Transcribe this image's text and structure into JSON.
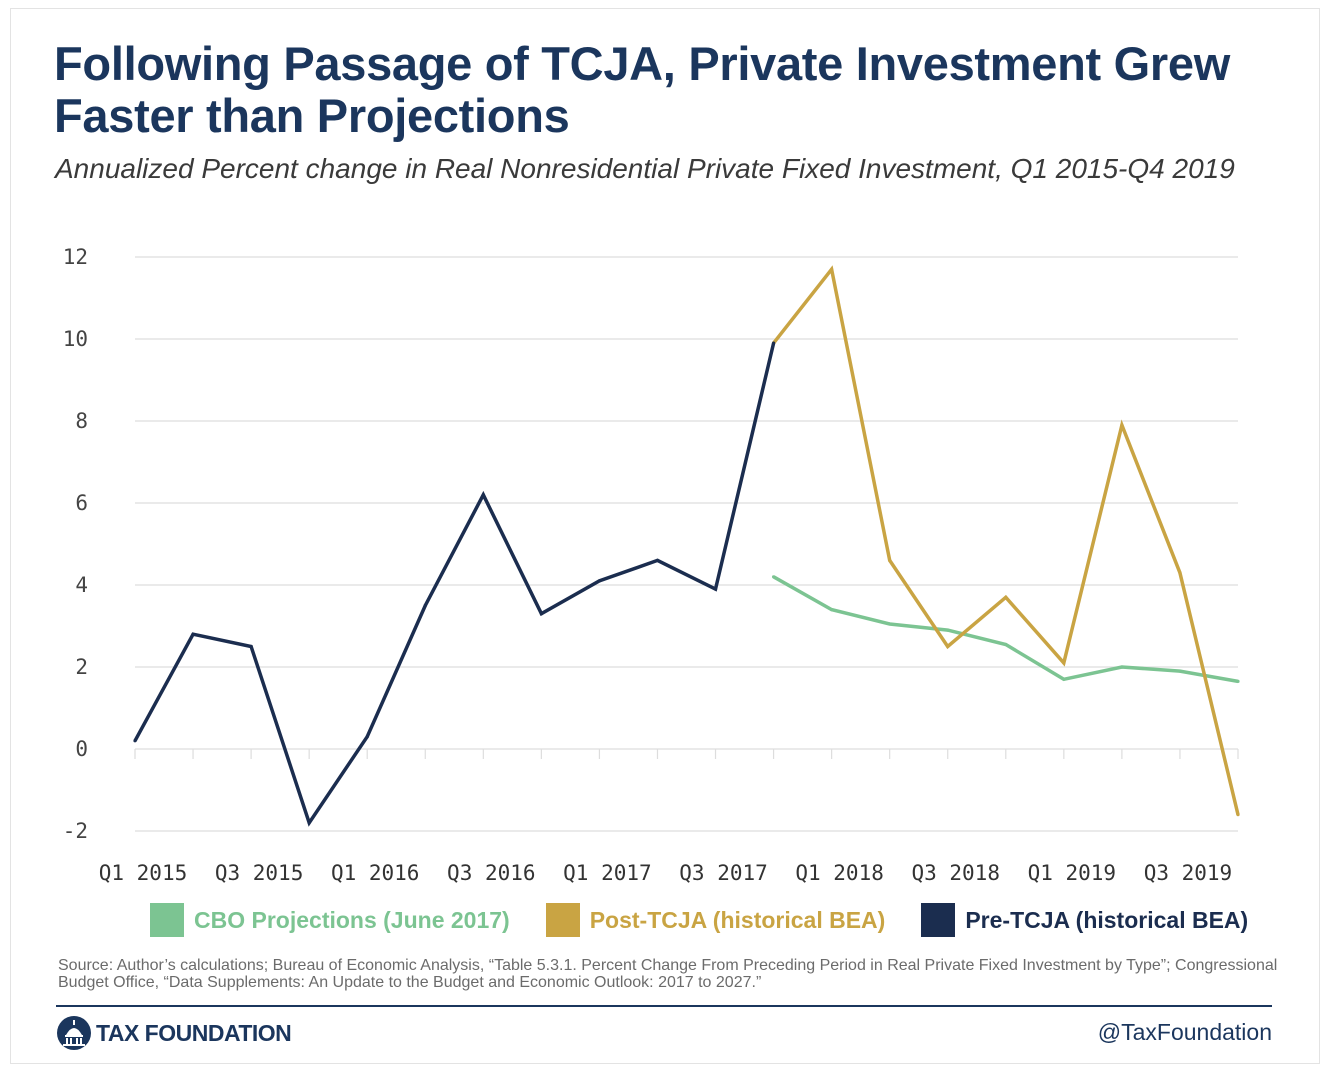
{
  "header": {
    "title": "Following Passage of TCJA, Private Investment Grew Faster than Projections",
    "subtitle": "Annualized Percent change in Real Nonresidential Private Fixed Investment, Q1 2015-Q4 2019"
  },
  "chart_data": {
    "type": "line",
    "title": "Following Passage of TCJA, Private Investment Grew Faster than Projections",
    "subtitle": "Annualized Percent change in Real Nonresidential Private Fixed Investment, Q1 2015-Q4 2019",
    "xlabel": "",
    "ylabel": "",
    "x": [
      "Q1 2015",
      "Q2 2015",
      "Q3 2015",
      "Q4 2015",
      "Q1 2016",
      "Q2 2016",
      "Q3 2016",
      "Q4 2016",
      "Q1 2017",
      "Q2 2017",
      "Q3 2017",
      "Q4 2017",
      "Q1 2018",
      "Q2 2018",
      "Q3 2018",
      "Q4 2018",
      "Q1 2019",
      "Q2 2019",
      "Q3 2019",
      "Q4 2019"
    ],
    "x_tick_labels": [
      "Q1 2015",
      "Q3 2015",
      "Q1 2016",
      "Q3 2016",
      "Q1 2017",
      "Q3 2017",
      "Q1 2018",
      "Q3 2018",
      "Q1 2019",
      "Q3 2019"
    ],
    "y_ticks": [
      -2,
      0,
      2,
      4,
      6,
      8,
      10,
      12
    ],
    "ylim": [
      -2,
      12
    ],
    "grid": "horizontal",
    "legend_position": "bottom",
    "series": [
      {
        "name": "CBO Projections (June 2017)",
        "color": "#7cc492",
        "x": [
          "Q4 2017",
          "Q1 2018",
          "Q2 2018",
          "Q3 2018",
          "Q4 2018",
          "Q1 2019",
          "Q2 2019",
          "Q3 2019",
          "Q4 2019"
        ],
        "values": [
          4.2,
          3.4,
          3.05,
          2.9,
          2.55,
          1.7,
          2.0,
          1.9,
          1.65
        ]
      },
      {
        "name": "Post-TCJA (historical BEA)",
        "color": "#c9a443",
        "x": [
          "Q4 2017",
          "Q1 2018",
          "Q2 2018",
          "Q3 2018",
          "Q4 2018",
          "Q1 2019",
          "Q2 2019",
          "Q3 2019",
          "Q4 2019"
        ],
        "values": [
          9.9,
          11.7,
          4.6,
          2.5,
          3.7,
          2.1,
          7.9,
          4.3,
          -1.6
        ]
      },
      {
        "name": "Pre-TCJA (historical BEA)",
        "color": "#1b2d4f",
        "x": [
          "Q1 2015",
          "Q2 2015",
          "Q3 2015",
          "Q4 2015",
          "Q1 2016",
          "Q2 2016",
          "Q3 2016",
          "Q4 2016",
          "Q1 2017",
          "Q2 2017",
          "Q3 2017",
          "Q4 2017"
        ],
        "values": [
          0.2,
          2.8,
          2.5,
          -1.8,
          0.3,
          3.5,
          6.2,
          3.3,
          4.1,
          4.6,
          3.9,
          9.9
        ]
      }
    ]
  },
  "footer": {
    "source": "Source: Author’s calculations; Bureau of Economic Analysis, “Table 5.3.1. Percent Change From Preceding Period in Real Private Fixed Investment by Type”; Congressional Budget Office, “Data Supplements: An Update to the Budget and Economic Outlook: 2017 to 2027.”",
    "brand": "TAX FOUNDATION",
    "brand_icon": "capitol-dome-icon",
    "handle": "@TaxFoundation"
  },
  "colors": {
    "title": "#1b365d",
    "grid": "#dddddd",
    "cbo": "#7cc492",
    "post": "#c9a443",
    "pre": "#1b2d4f"
  }
}
